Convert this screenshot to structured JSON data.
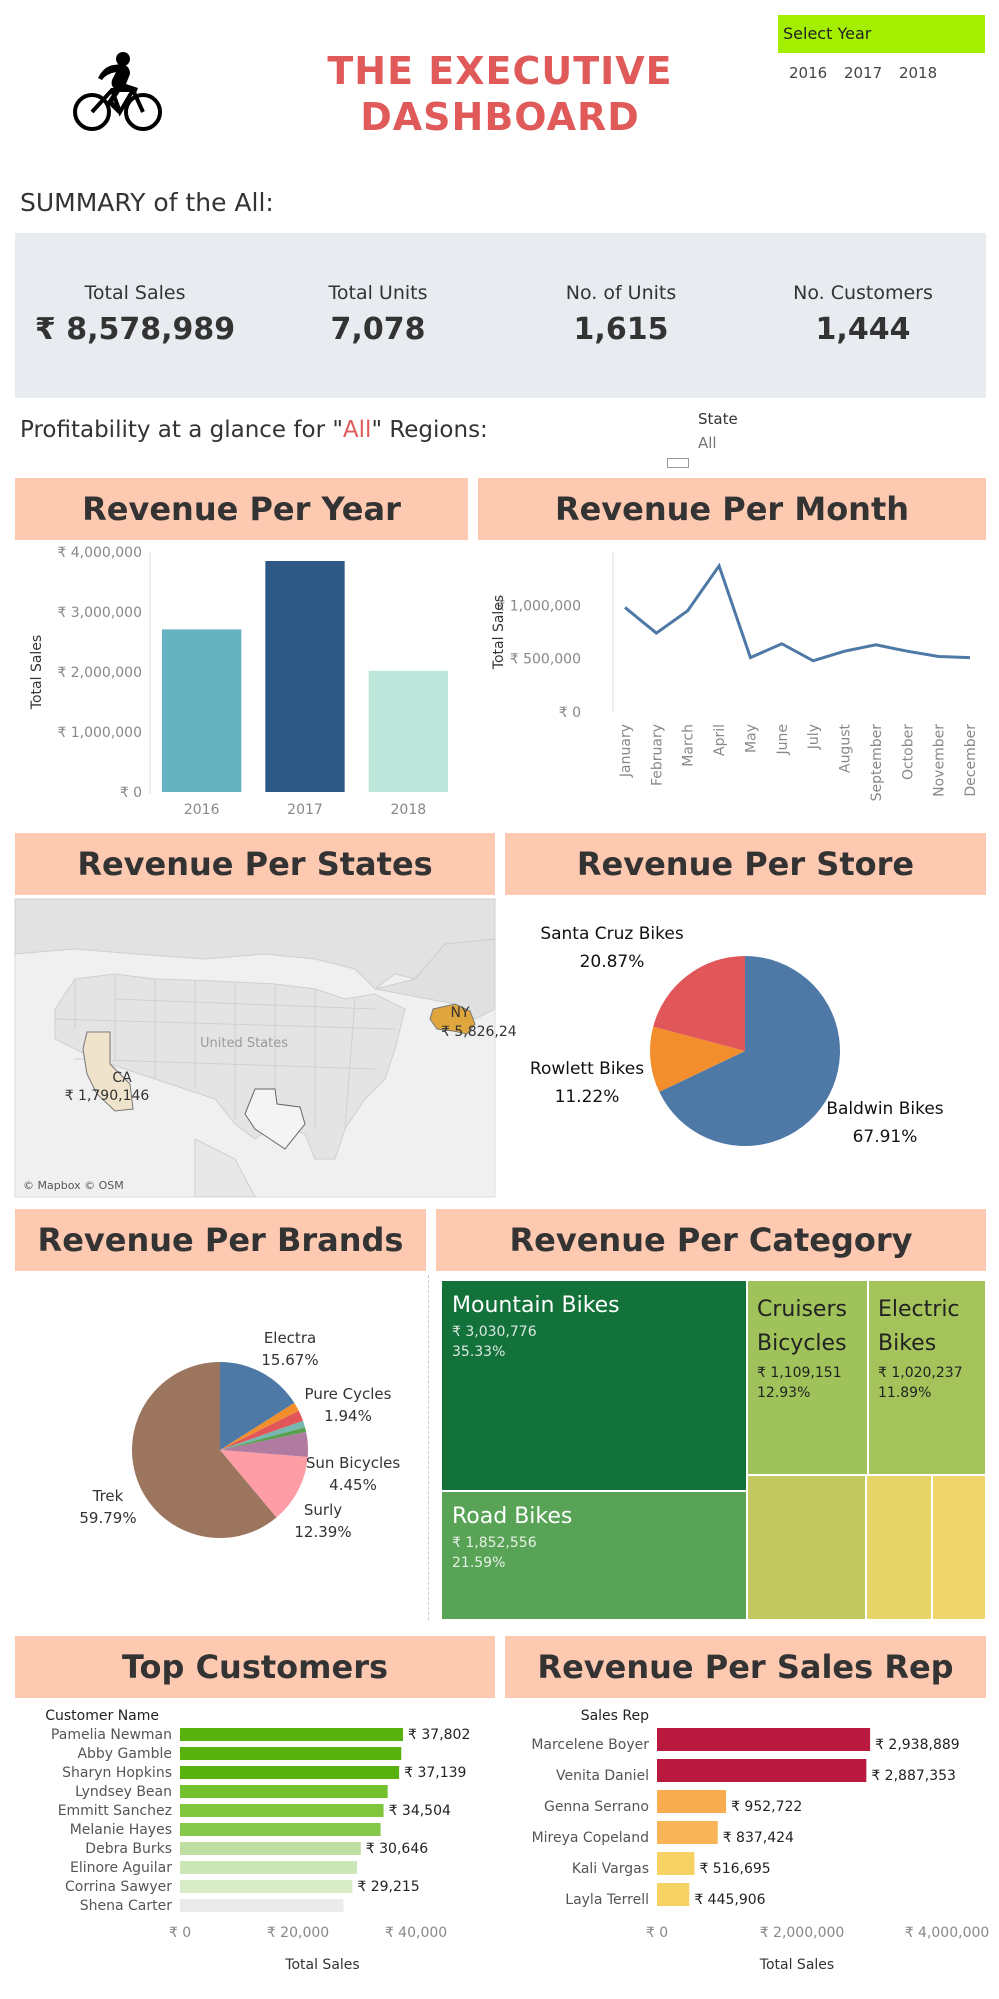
{
  "header": {
    "title_line1": "THE EXECUTIVE",
    "title_line2": "DASHBOARD",
    "logo_icon": "cyclist-icon",
    "year_filter": {
      "label": "Select Year",
      "options": [
        "2016",
        "2017",
        "2018"
      ]
    }
  },
  "summary": {
    "title": "SUMMARY of the All:",
    "kpis": [
      {
        "label": "Total Sales",
        "value": "₹ 8,578,989"
      },
      {
        "label": "Total Units",
        "value": "7,078"
      },
      {
        "label": "No. of Units",
        "value": "1,615"
      },
      {
        "label": "No. Customers",
        "value": "1,444"
      }
    ]
  },
  "profitability": {
    "prefix": "Profitability at a glance for \"",
    "highlight": "All",
    "suffix": "\" Regions:"
  },
  "state_filter": {
    "label": "State",
    "value": "All"
  },
  "colors": {
    "title": "#e05a5a",
    "header_band": "#fec9b1",
    "year_filter": "#a4ef00",
    "summary_band": "#e8ecf0"
  },
  "sections": {
    "revenue_per_year": "Revenue Per Year",
    "revenue_per_month": "Revenue Per Month",
    "revenue_per_states": "Revenue Per States",
    "revenue_per_store": "Revenue Per Store",
    "revenue_per_brands": "Revenue Per Brands",
    "revenue_per_category": "Revenue Per Category",
    "top_customers": "Top Customers",
    "revenue_per_sales_rep": "Revenue Per Sales Rep"
  },
  "map": {
    "country_label": "United States",
    "attribution": "© Mapbox © OSM",
    "states": [
      {
        "code": "CA",
        "value": "₹ 1,790,146"
      },
      {
        "code": "NY",
        "value": "₹ 5,826,24"
      }
    ]
  },
  "chart_data": [
    {
      "id": "year",
      "type": "bar",
      "categories": [
        "2016",
        "2017",
        "2018"
      ],
      "values": [
        2710000,
        3850000,
        2020000
      ],
      "colors": [
        "#66b2c1",
        "#2c5985",
        "#bde6da"
      ],
      "ylabel": "Total Sales",
      "ylim": [
        0,
        4000000
      ],
      "yticks": [
        "₹ 0",
        "₹ 1,000,000",
        "₹ 2,000,000",
        "₹ 3,000,000",
        "₹ 4,000,000"
      ],
      "ytick_values": [
        0,
        1000000,
        2000000,
        3000000,
        4000000
      ]
    },
    {
      "id": "month",
      "type": "line",
      "categories": [
        "January",
        "February",
        "March",
        "April",
        "May",
        "June",
        "July",
        "August",
        "September",
        "October",
        "November",
        "December"
      ],
      "values": [
        980000,
        740000,
        950000,
        1370000,
        510000,
        640000,
        480000,
        570000,
        630000,
        570000,
        520000,
        510000
      ],
      "color": "#4e79a7",
      "ylabel": "Total Sales",
      "ylim": [
        0,
        1500000
      ],
      "yticks": [
        "₹ 0",
        "₹ 500,000",
        "₹ 1,000,000"
      ],
      "ytick_values": [
        0,
        500000,
        1000000
      ]
    },
    {
      "id": "store",
      "type": "pie",
      "slices": [
        {
          "name": "Baldwin Bikes",
          "pct": "67.91%",
          "value": 67.91,
          "color": "#4e79a7"
        },
        {
          "name": "Rowlett Bikes",
          "pct": "11.22%",
          "value": 11.22,
          "color": "#f28e2b"
        },
        {
          "name": "Santa Cruz Bikes",
          "pct": "20.87%",
          "value": 20.87,
          "color": "#e15759"
        }
      ]
    },
    {
      "id": "brands",
      "type": "pie",
      "slices": [
        {
          "name": "Electra",
          "pct": "15.67%",
          "value": 15.67,
          "color": "#4e79a7",
          "labeled": true
        },
        {
          "name": "",
          "pct": "",
          "value": 1.6,
          "color": "#f28e2b",
          "labeled": false
        },
        {
          "name": "Pure Cycles",
          "pct": "1.94%",
          "value": 1.94,
          "color": "#e15759",
          "labeled": true
        },
        {
          "name": "",
          "pct": "",
          "value": 1.2,
          "color": "#76b7b2",
          "labeled": false
        },
        {
          "name": "",
          "pct": "",
          "value": 0.84,
          "color": "#59a14f",
          "labeled": false
        },
        {
          "name": "Sun Bicycles",
          "pct": "4.45%",
          "value": 4.45,
          "color": "#b07aa1",
          "labeled": true
        },
        {
          "name": "Surly",
          "pct": "12.39%",
          "value": 12.39,
          "color": "#ff9da7",
          "labeled": true
        },
        {
          "name": "Trek",
          "pct": "59.79%",
          "value": 59.79,
          "color": "#9c755f",
          "labeled": true
        }
      ]
    },
    {
      "id": "customers",
      "type": "bar",
      "orientation": "horizontal",
      "title": "Customer Name",
      "categories": [
        "Pamelia Newman",
        "Abby Gamble",
        "Sharyn Hopkins",
        "Lyndsey Bean",
        "Emmitt Sanchez",
        "Melanie Hayes",
        "Debra Burks",
        "Elinore Aguilar",
        "Corrina Sawyer",
        "Shena Carter"
      ],
      "values": [
        37802,
        37500,
        37139,
        35200,
        34504,
        34000,
        30646,
        30000,
        29215,
        27700
      ],
      "data_labels": [
        "₹ 37,802",
        "",
        "₹ 37,139",
        "",
        "₹ 34,504",
        "",
        "₹ 30,646",
        "",
        "₹ 29,215",
        ""
      ],
      "colors": [
        "#58b10d",
        "#58b10d",
        "#58b10d",
        "#74c12e",
        "#7fc63d",
        "#86c84a",
        "#bfdea1",
        "#cde6b8",
        "#d7ebc6",
        "#ebebeb"
      ],
      "xlabel": "Total Sales",
      "xlim": [
        0,
        50000
      ],
      "xticks": [
        "₹ 0",
        "₹ 20,000",
        "₹ 40,000"
      ],
      "xtick_values": [
        0,
        20000,
        40000
      ]
    },
    {
      "id": "reps",
      "type": "bar",
      "orientation": "horizontal",
      "title": "Sales Rep",
      "categories": [
        "Marcelene Boyer",
        "Venita Daniel",
        "Genna Serrano",
        "Mireya Copeland",
        "Kali Vargas",
        "Layla Terrell"
      ],
      "values": [
        2938889,
        2887353,
        952722,
        837424,
        516695,
        445906
      ],
      "data_labels": [
        "₹ 2,938,889",
        "₹ 2,887,353",
        "₹ 952,722",
        "₹ 837,424",
        "₹ 516,695",
        "₹ 445,906"
      ],
      "colors": [
        "#b9183f",
        "#b9183f",
        "#f9ac50",
        "#f9b457",
        "#f6d264",
        "#f6d264"
      ],
      "xlabel": "Total Sales",
      "xlim": [
        0,
        4000000
      ],
      "xticks": [
        "₹ 0",
        "₹ 2,000,000",
        "₹ 4,000,000"
      ],
      "xtick_values": [
        0,
        2000000,
        4000000
      ]
    },
    {
      "id": "category",
      "type": "treemap",
      "items": [
        {
          "name": "Mountain Bikes",
          "value": "₹ 3,030,776",
          "pct": "35.33%",
          "color": "#13713a"
        },
        {
          "name": "Road Bikes",
          "value": "₹ 1,852,556",
          "pct": "21.59%",
          "color": "#58a356"
        },
        {
          "name": "Cruisers Bicycles",
          "value": "₹ 1,109,151",
          "pct": "12.93%",
          "color": "#9fc25a"
        },
        {
          "name": "Electric Bikes",
          "value": "₹ 1,020,237",
          "pct": "11.89%",
          "color": "#a4c35a"
        },
        {
          "name": "",
          "value": "",
          "pct": "",
          "color": "#c3c861"
        },
        {
          "name": "",
          "value": "",
          "pct": "",
          "color": "#e7d466"
        },
        {
          "name": "",
          "value": "",
          "pct": "",
          "color": "#f0d56a"
        }
      ]
    }
  ]
}
